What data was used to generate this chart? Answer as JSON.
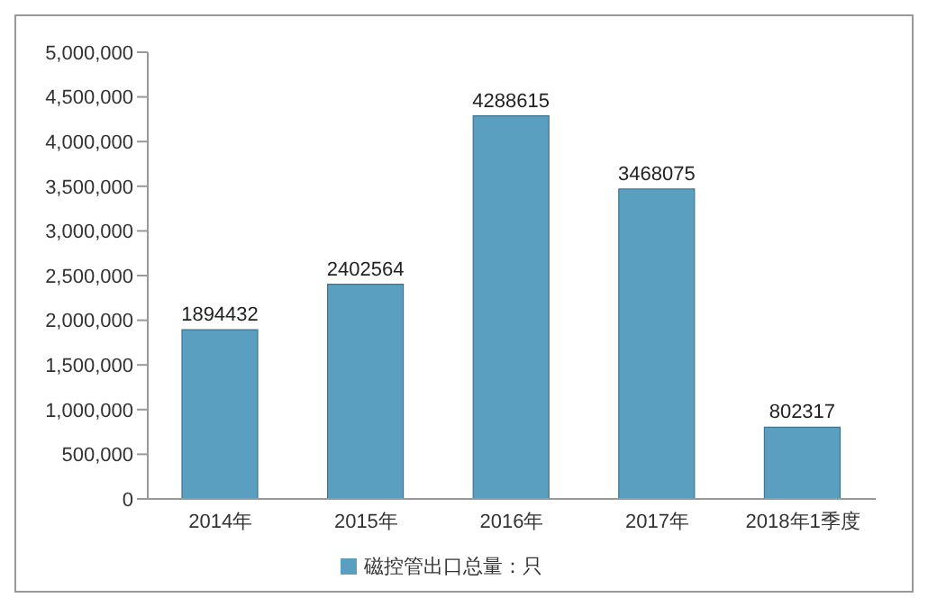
{
  "chart_data": {
    "type": "bar",
    "categories": [
      "2014年",
      "2015年",
      "2016年",
      "2017年",
      "2018年1季度"
    ],
    "series": [
      {
        "name": "磁控管出口总量：只",
        "color": "#5a9fc0",
        "values": [
          1894432,
          2402564,
          4288615,
          3468075,
          802317
        ]
      }
    ],
    "ylim": [
      0,
      5000000
    ],
    "yticks": [
      {
        "value": 0,
        "label": "0"
      },
      {
        "value": 500000,
        "label": "500,000"
      },
      {
        "value": 1000000,
        "label": "1,000,000"
      },
      {
        "value": 1500000,
        "label": "1,500,000"
      },
      {
        "value": 2000000,
        "label": "2,000,000"
      },
      {
        "value": 2500000,
        "label": "2,500,000"
      },
      {
        "value": 3000000,
        "label": "3,000,000"
      },
      {
        "value": 3500000,
        "label": "3,500,000"
      },
      {
        "value": 4000000,
        "label": "4,000,000"
      },
      {
        "value": 4500000,
        "label": "4,500,000"
      },
      {
        "value": 5000000,
        "label": "5,000,000"
      }
    ],
    "data_labels": true,
    "legend": "bottom",
    "grid": false
  }
}
